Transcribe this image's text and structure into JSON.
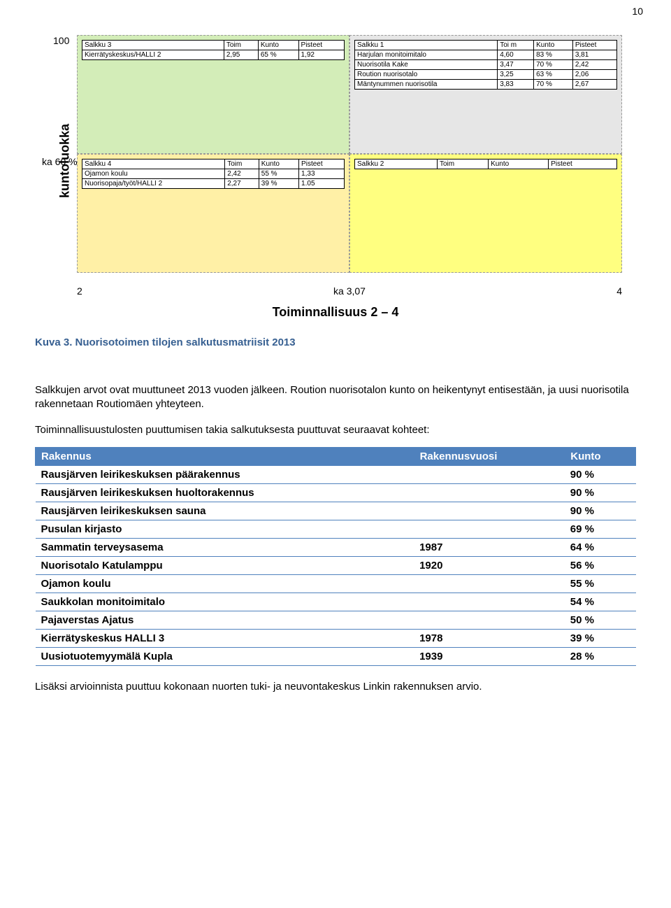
{
  "page_number": "10",
  "matrix": {
    "y_axis_label": "kuntoluokka",
    "y_top": "100",
    "y_mid": "ka 60 %",
    "x_left": "2",
    "x_mid": "ka 3,07",
    "x_right": "4",
    "x_axis_title": "Toiminnallisuus 2 – 4",
    "colors": {
      "tl": "#d3edb8",
      "tr": "#e6e6e6",
      "bl": "#fff0a6",
      "br": "#ffff80",
      "dash": "#999999",
      "bg": "#ffffff"
    },
    "header_cells": [
      "Toim",
      "Kunto",
      "Pisteet"
    ],
    "salkku3": {
      "title": "Salkku 3",
      "rows": [
        [
          "Kierrätyskeskus/HALLI 2",
          "2,95",
          "65 %",
          "1,92"
        ]
      ]
    },
    "salkku1": {
      "title": "Salkku 1",
      "toi_header": "Toi m",
      "rows": [
        [
          "Harjulan monitoimitalo",
          "4,60",
          "83 %",
          "3,81"
        ],
        [
          "Nuorisotila Kake",
          "3,47",
          "70 %",
          "2,42"
        ],
        [
          "Roution nuorisotalo",
          "3,25",
          "63 %",
          "2,06"
        ],
        [
          "Mäntynummen nuorisotila",
          "3,83",
          "70 %",
          "2,67"
        ]
      ]
    },
    "salkku4": {
      "title": "Salkku 4",
      "rows": [
        [
          "Ojamon koulu",
          "2,42",
          "55 %",
          "1,33"
        ],
        [
          "Nuorisopaja/työt/HALLI 2",
          "2,27",
          "39 %",
          "1.05"
        ]
      ]
    },
    "salkku2": {
      "title": "Salkku 2",
      "rows": []
    }
  },
  "caption": "Kuva 3. Nuorisotoimen tilojen salkutusmatriisit 2013",
  "paragraph1": "Salkkujen arvot ovat muuttuneet 2013 vuoden jälkeen. Roution nuorisotalon kunto on heikentynyt entisestään, ja uusi nuorisotila rakennetaan Routiomäen yhteyteen.",
  "paragraph2": "Toiminnallisuustulosten puuttumisen takia salkutuksesta puuttuvat seuraavat kohteet:",
  "result_table": {
    "headers": [
      "Rakennus",
      "Rakennusvuosi",
      "Kunto"
    ],
    "header_bg": "#4f81bd",
    "header_fg": "#ffffff",
    "border_color": "#4f81bd",
    "rows": [
      {
        "name": "Rausjärven leirikeskuksen päärakennus",
        "year": "",
        "kunto": "90 %"
      },
      {
        "name": "Rausjärven leirikeskuksen huoltorakennus",
        "year": "",
        "kunto": "90 %"
      },
      {
        "name": "Rausjärven leirikeskuksen sauna",
        "year": "",
        "kunto": "90 %"
      },
      {
        "name": "Pusulan kirjasto",
        "year": "",
        "kunto": "69 %"
      },
      {
        "name": "Sammatin terveysasema",
        "year": "1987",
        "kunto": "64 %"
      },
      {
        "name": "Nuorisotalo Katulamppu",
        "year": "1920",
        "kunto": "56 %"
      },
      {
        "name": "Ojamon koulu",
        "year": "",
        "kunto": "55 %"
      },
      {
        "name": "Saukkolan monitoimitalo",
        "year": "",
        "kunto": "54 %"
      },
      {
        "name": "Pajaverstas Ajatus",
        "year": "",
        "kunto": "50 %"
      },
      {
        "name": "Kierrätyskeskus HALLI 3",
        "year": "1978",
        "kunto": "39 %"
      },
      {
        "name": "Uusiotuotemyymälä Kupla",
        "year": "1939",
        "kunto": "28 %"
      }
    ]
  },
  "footer": "Lisäksi arvioinnista puuttuu kokonaan nuorten tuki- ja neuvontakeskus Linkin rakennuksen arvio."
}
